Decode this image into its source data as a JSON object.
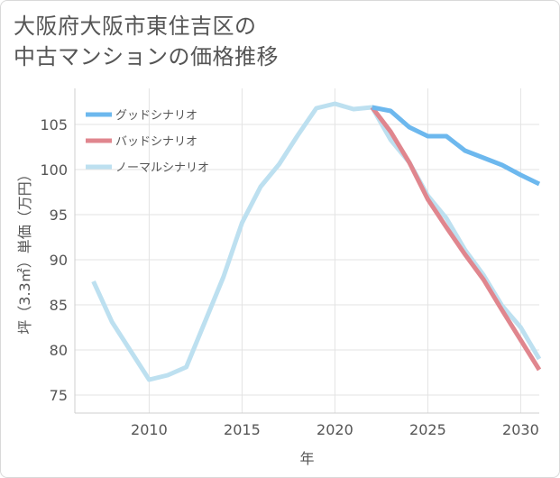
{
  "title_line1": "大阪府大阪市東住吉区の",
  "title_line2": "中古マンションの価格推移",
  "chart_data": {
    "type": "line",
    "xlabel": "年",
    "ylabel": "坪（3.3㎡）単価（万円）",
    "xlim": [
      2006,
      2031
    ],
    "ylim": [
      73,
      109
    ],
    "xticks": [
      2010,
      2015,
      2020,
      2025,
      2030
    ],
    "yticks": [
      75,
      80,
      85,
      90,
      95,
      100,
      105
    ],
    "grid": true,
    "legend_position": "top-left",
    "series": [
      {
        "name": "グッドシナリオ",
        "color": "#6db8ee",
        "x": [
          2022,
          2023,
          2024,
          2025,
          2026,
          2027,
          2028,
          2029,
          2030,
          2031
        ],
        "y": [
          106.9,
          106.5,
          104.7,
          103.7,
          103.7,
          102.1,
          101.3,
          100.5,
          99.4,
          98.4
        ]
      },
      {
        "name": "バッドシナリオ",
        "color": "#e0868e",
        "x": [
          2022,
          2023,
          2024,
          2025,
          2026,
          2027,
          2028,
          2029,
          2030,
          2031
        ],
        "y": [
          106.9,
          104.2,
          100.8,
          96.7,
          93.6,
          90.6,
          87.8,
          84.4,
          81.1,
          77.8
        ]
      },
      {
        "name": "ノーマルシナリオ",
        "color": "#bde0f0",
        "x": [
          2007,
          2008,
          2009,
          2010,
          2011,
          2012,
          2013,
          2014,
          2015,
          2016,
          2017,
          2018,
          2019,
          2020,
          2021,
          2022,
          2023,
          2024,
          2025,
          2026,
          2027,
          2028,
          2029,
          2030,
          2031
        ],
        "y": [
          87.6,
          83.1,
          79.9,
          76.7,
          77.2,
          78.1,
          83.1,
          88.1,
          94.1,
          98.1,
          100.6,
          103.8,
          106.8,
          107.3,
          106.7,
          106.9,
          103.3,
          100.8,
          97.1,
          94.6,
          91.1,
          88.3,
          84.9,
          82.5,
          79.0
        ]
      }
    ]
  }
}
